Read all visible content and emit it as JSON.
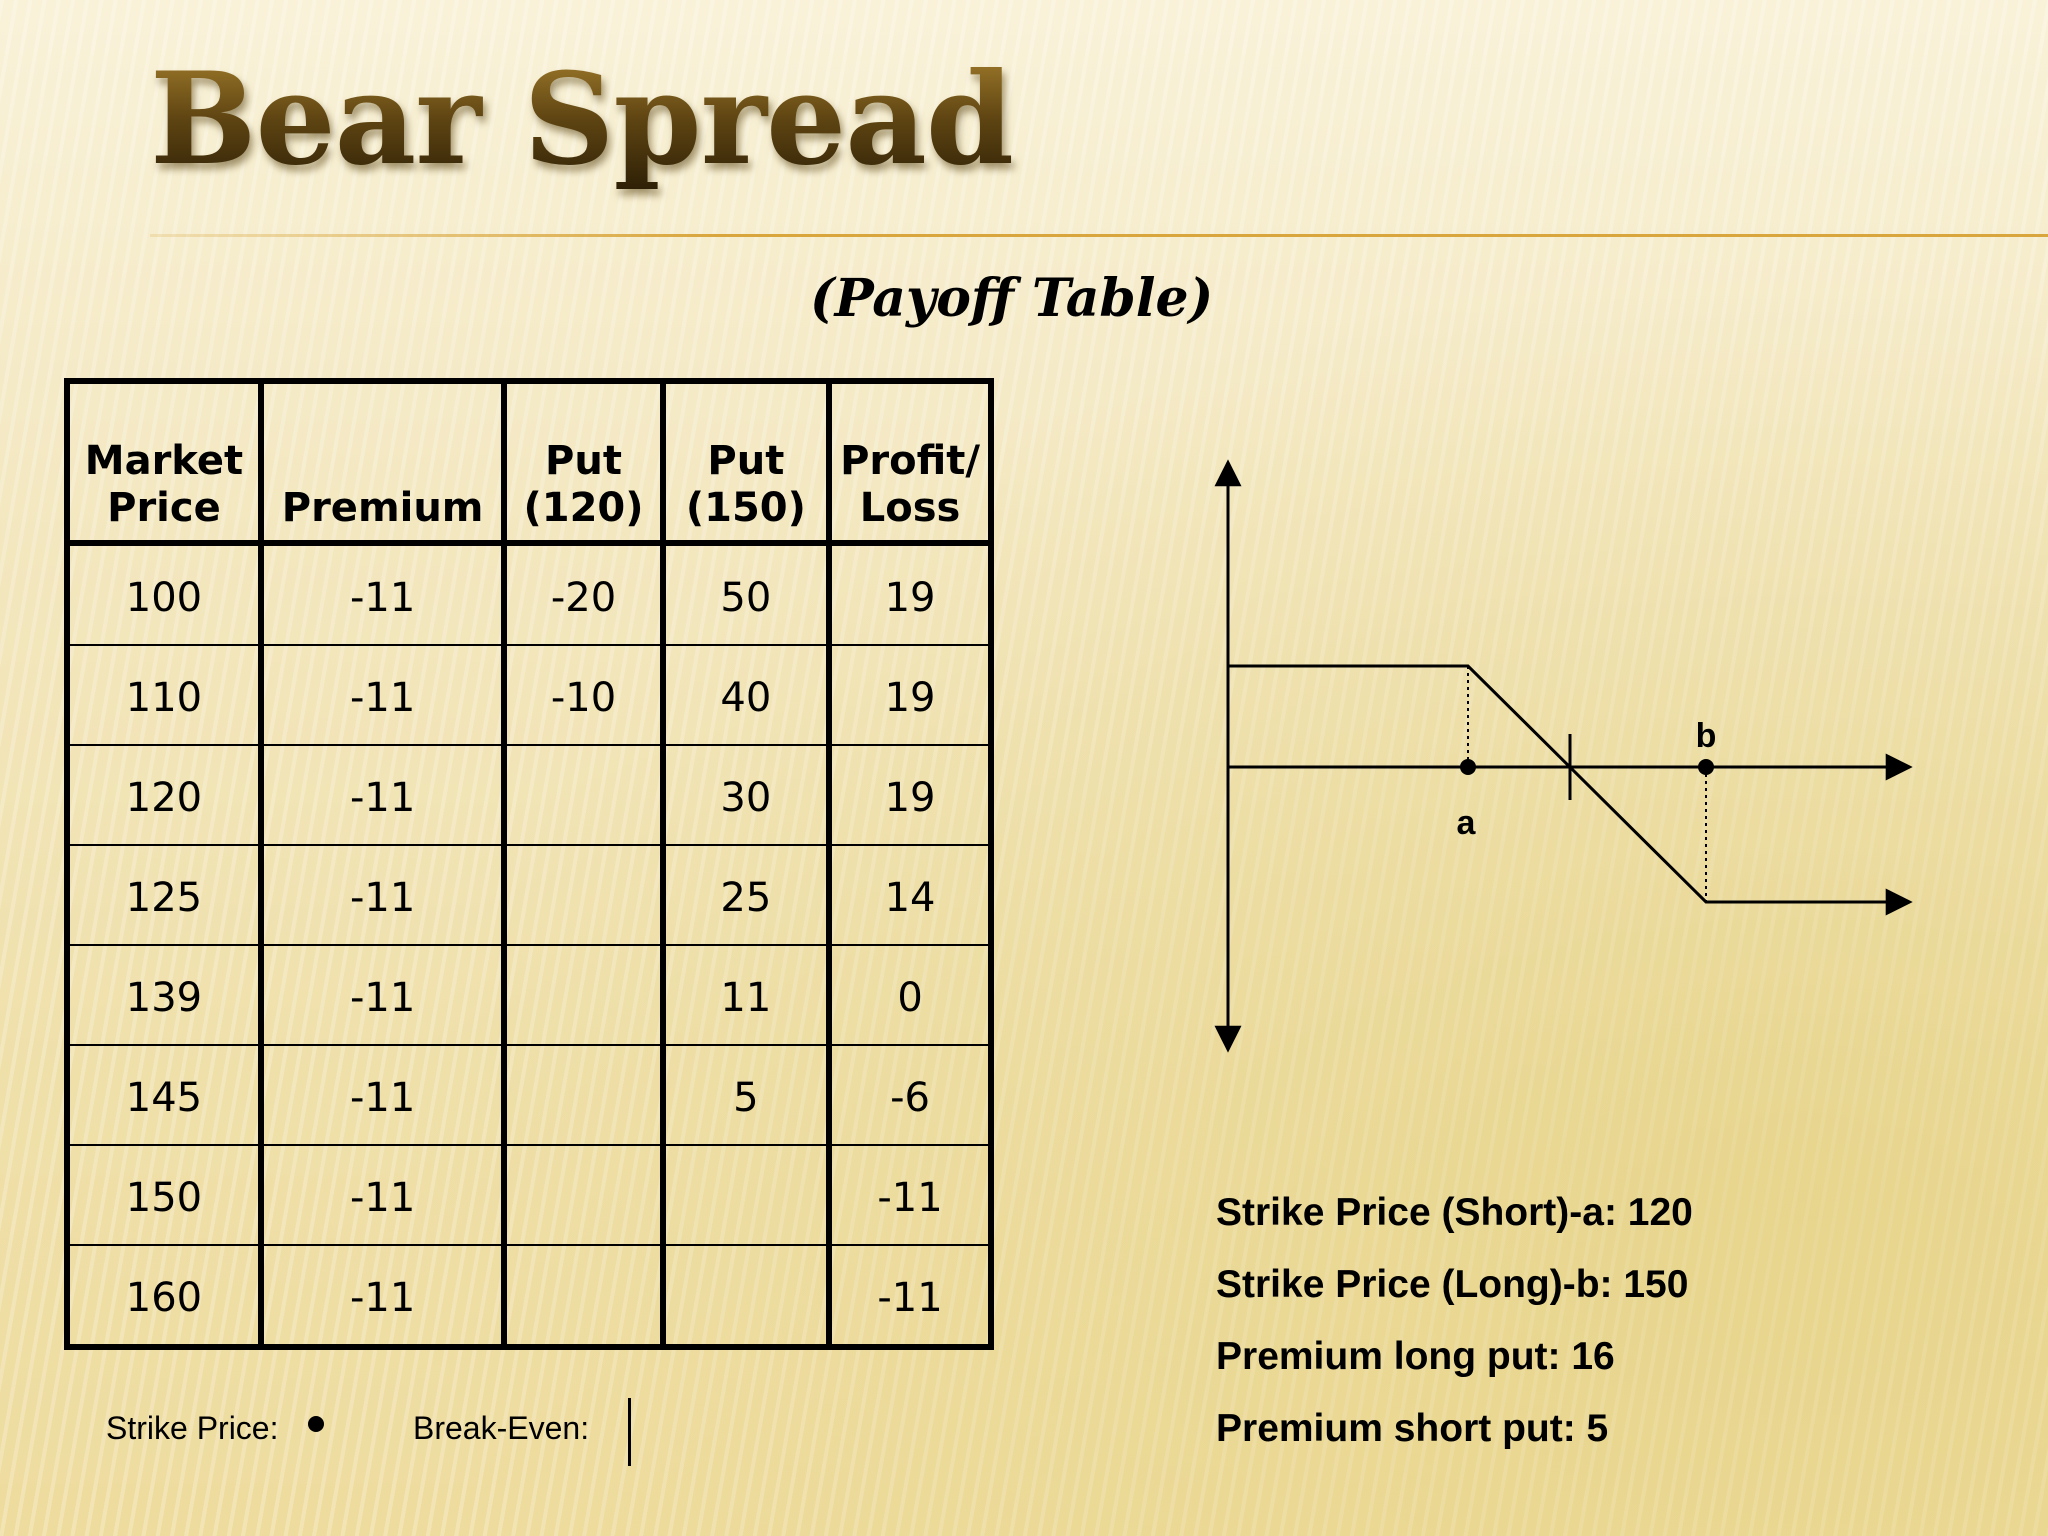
{
  "title": "Bear Spread",
  "subtitle": "(Payoff Table)",
  "table": {
    "headers": [
      [
        "Market",
        "Price"
      ],
      [
        "",
        "Premium"
      ],
      [
        "Put",
        "(120)"
      ],
      [
        "Put",
        "(150)"
      ],
      [
        "Profit/",
        "Loss"
      ]
    ],
    "rows": [
      [
        "100",
        "-11",
        "-20",
        "50",
        "19"
      ],
      [
        "110",
        "-11",
        "-10",
        "40",
        "19"
      ],
      [
        "120",
        "-11",
        "",
        "30",
        "19"
      ],
      [
        "125",
        "-11",
        "",
        "25",
        "14"
      ],
      [
        "139",
        "-11",
        "",
        "11",
        "0"
      ],
      [
        "145",
        "-11",
        "",
        "5",
        "-6"
      ],
      [
        "150",
        "-11",
        "",
        "",
        "-11"
      ],
      [
        "160",
        "-11",
        "",
        "",
        "-11"
      ]
    ]
  },
  "diagram": {
    "point_a_label": "a",
    "point_b_label": "b"
  },
  "legend": {
    "strike_label": "Strike Price:",
    "breakeven_label": "Break-Even:"
  },
  "info": {
    "line1": "Strike Price (Short)-a: 120",
    "line2": "Strike Price (Long)-b: 150",
    "line3": "Premium long put: 16",
    "line4": "Premium short put: 5"
  }
}
